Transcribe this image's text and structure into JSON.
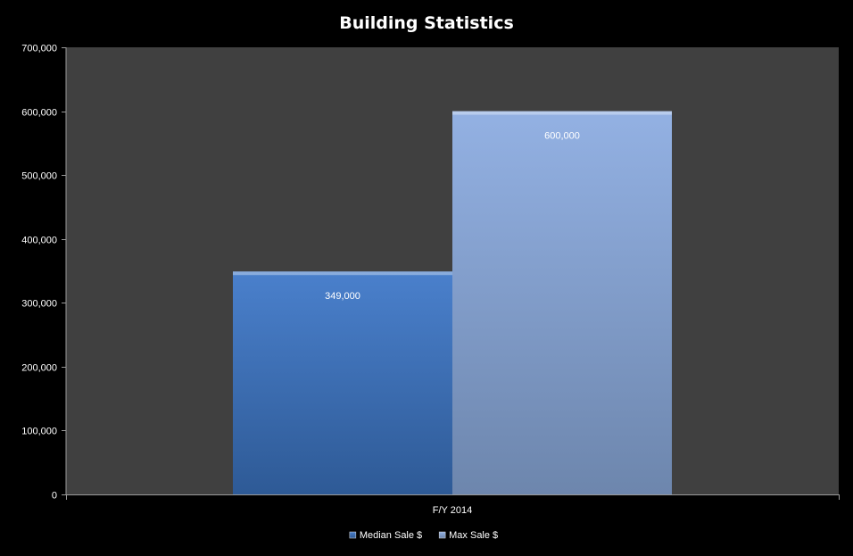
{
  "chart_data": {
    "type": "bar",
    "title": "Building Statistics",
    "xlabel": "",
    "ylabel": "",
    "categories": [
      "F/Y 2014"
    ],
    "series": [
      {
        "name": "Median Sale $",
        "values": [
          349000
        ],
        "color": "#3f73bd",
        "label": "349,000"
      },
      {
        "name": "Max Sale $",
        "values": [
          600000
        ],
        "color": "#8ea9d8",
        "label": "600,000"
      }
    ],
    "ylim": [
      0,
      700000
    ],
    "yticks": [
      0,
      100000,
      200000,
      300000,
      400000,
      500000,
      600000,
      700000
    ],
    "ytick_labels": [
      "0",
      "100,000",
      "200,000",
      "300,000",
      "400,000",
      "500,000",
      "600,000",
      "700,000"
    ],
    "grid": false,
    "legend_position": "bottom",
    "plot_background": "#404040",
    "background": "#000000"
  }
}
